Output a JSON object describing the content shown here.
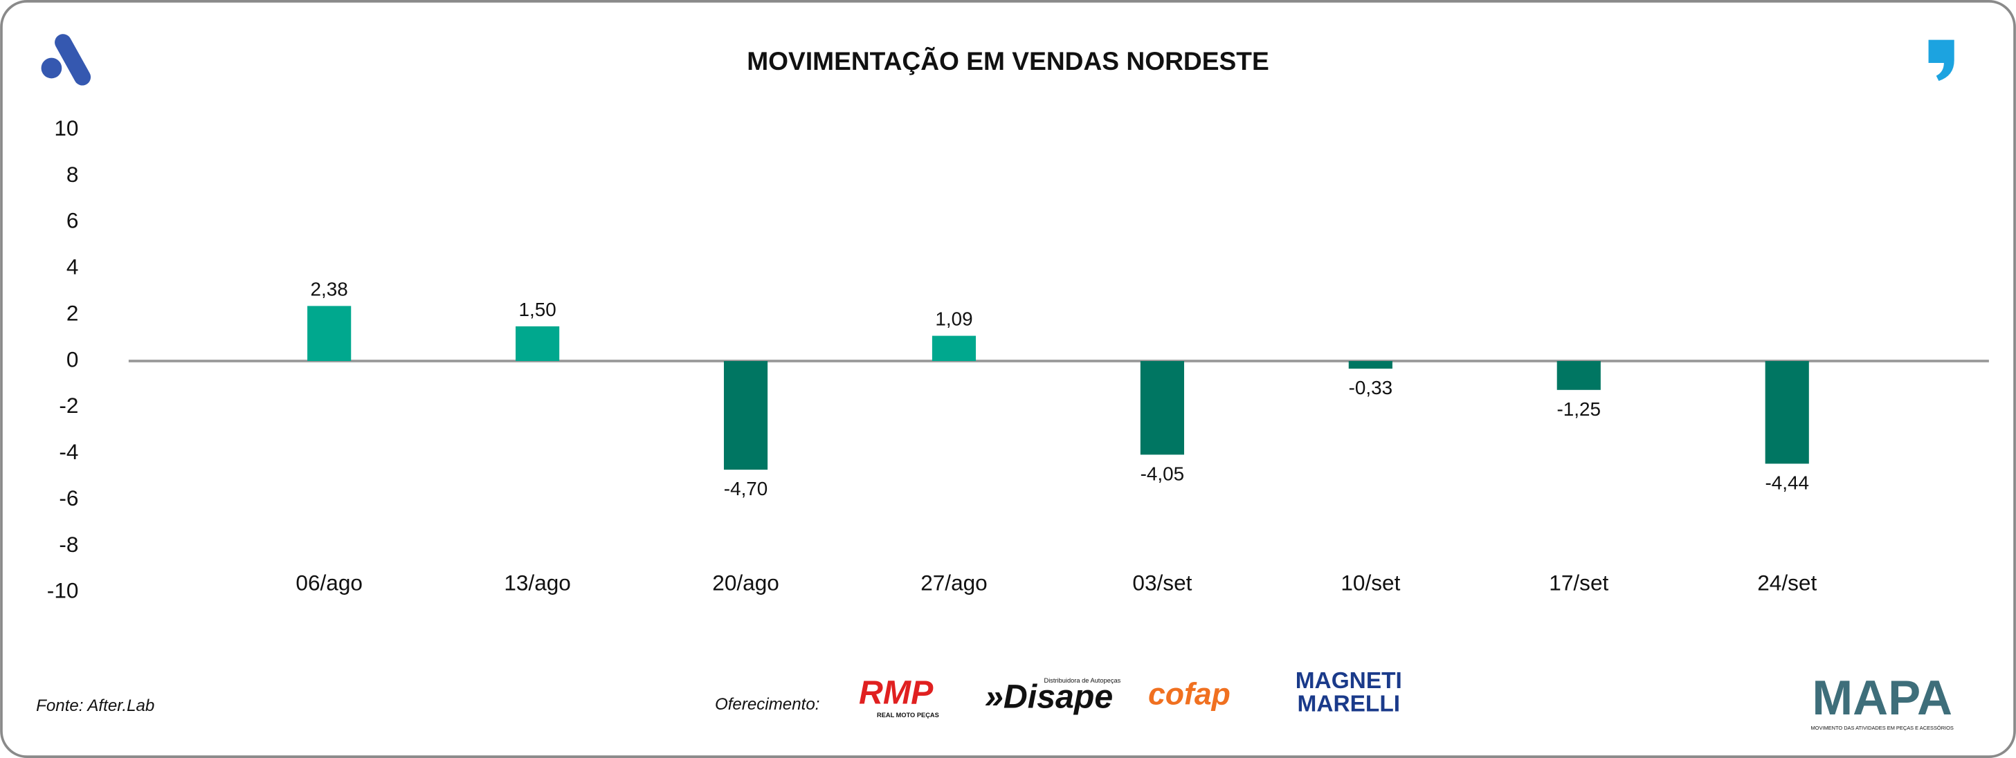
{
  "chart_data": {
    "type": "bar",
    "title": "MOVIMENTAÇÃO EM VENDAS NORDESTE",
    "categories": [
      "06/ago",
      "13/ago",
      "20/ago",
      "27/ago",
      "03/set",
      "10/set",
      "17/set",
      "24/set"
    ],
    "values": [
      2.38,
      1.5,
      -4.7,
      1.09,
      -4.05,
      -0.33,
      -1.25,
      -4.44
    ],
    "value_labels": [
      "2,38",
      "1,50",
      "-4,70",
      "1,09",
      "-4,05",
      "-0,33",
      "-1,25",
      "-4,44"
    ],
    "positive_color": "#00a88e",
    "negative_color": "#007662",
    "ylim": [
      -10,
      10
    ],
    "yticks": [
      -10,
      -8,
      -6,
      -4,
      -2,
      0,
      2,
      4,
      6,
      8,
      10
    ],
    "grid": false
  },
  "footer": {
    "source": "Fonte: After.Lab",
    "sponsor_label": "Oferecimento:",
    "sponsors": [
      "RMP",
      "REAL MOTO PEÇAS",
      "Distribuidora de Autopeças",
      "»Disape",
      "cofap",
      "MAGNETI",
      "MARELLI"
    ],
    "brand": "MAPA",
    "brand_tagline": "MOVIMENTO DAS ATIVIDADES EM PEÇAS E ACESSÓRIOS"
  }
}
